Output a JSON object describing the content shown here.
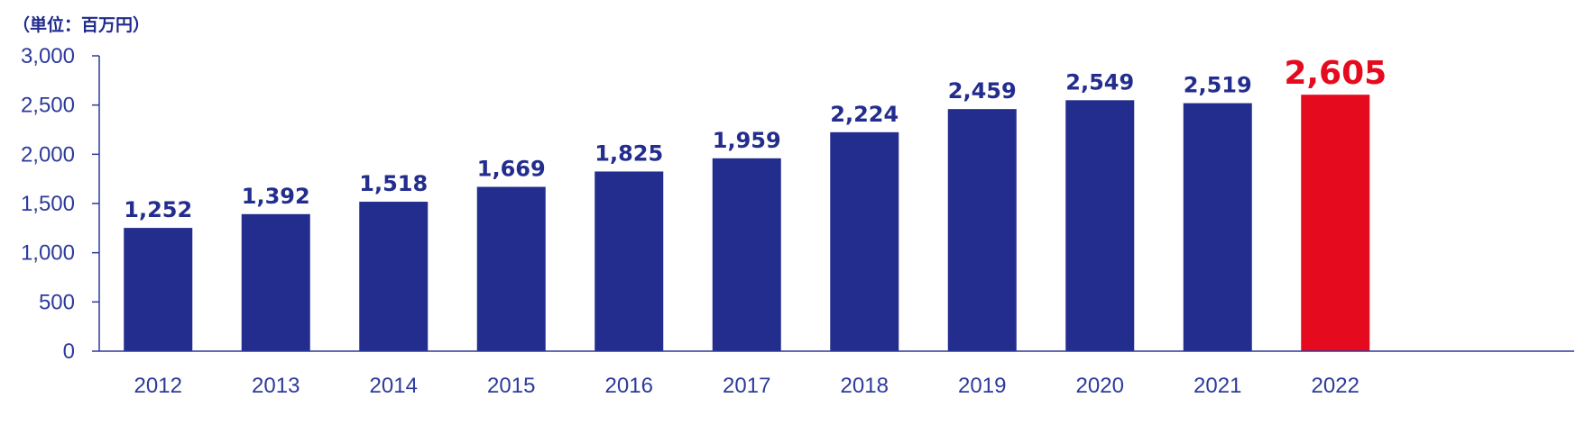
{
  "chart_data": {
    "type": "bar",
    "unit_label": "（単位：百万円）",
    "categories": [
      "2012",
      "2013",
      "2014",
      "2015",
      "2016",
      "2017",
      "2018",
      "2019",
      "2020",
      "2021",
      "2022"
    ],
    "values": [
      1252,
      1392,
      1518,
      1669,
      1825,
      1959,
      2224,
      2459,
      2549,
      2519,
      2605
    ],
    "data_labels": [
      "1,252",
      "1,392",
      "1,518",
      "1,669",
      "1,825",
      "1,959",
      "2,224",
      "2,459",
      "2,549",
      "2,519",
      "2,605"
    ],
    "highlight_category": "2022",
    "ylim": [
      0,
      3000
    ],
    "yticks": [
      0,
      500,
      1000,
      1500,
      2000,
      2500,
      3000
    ],
    "ytick_labels": [
      "0",
      "500",
      "1,000",
      "1,500",
      "2,000",
      "2,500",
      "3,000"
    ],
    "grid": false,
    "colors": {
      "bar": "#232d8e",
      "highlight": "#e60a1e",
      "axis": "#2d3a9c",
      "label": "#232d8e"
    }
  }
}
